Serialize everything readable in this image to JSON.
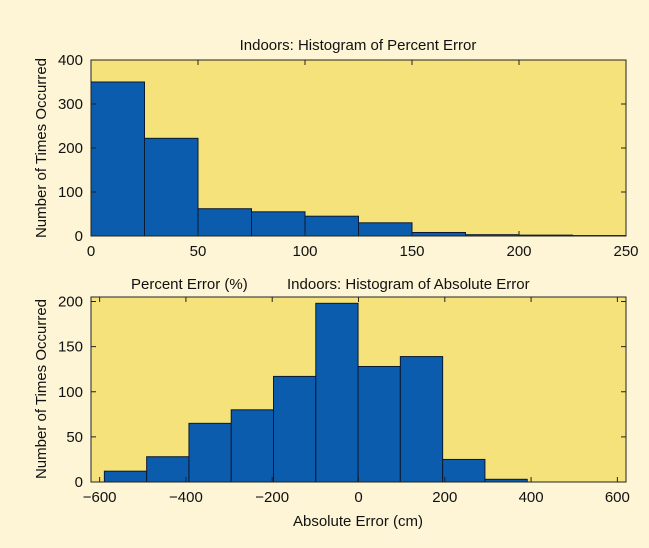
{
  "colors": {
    "background": "#fdf5d6",
    "plot_area": "#f5e27a",
    "bar_fill": "#0b5cad",
    "bar_edge": "#0a1a33"
  },
  "chart_data": [
    {
      "type": "bar",
      "title": "Indoors: Histogram of Percent Error",
      "xlabel": "Percent Error (%)",
      "ylabel": "Number of Times Occurred",
      "xlim": [
        0,
        250
      ],
      "ylim": [
        0,
        400
      ],
      "xticks": [
        "0",
        "50",
        "100",
        "150",
        "200",
        "250"
      ],
      "yticks": [
        "0",
        "100",
        "200",
        "300",
        "400"
      ],
      "bin_width": 25,
      "bin_starts": [
        0,
        25,
        50,
        75,
        100,
        125,
        150,
        175,
        200,
        225
      ],
      "values": [
        350,
        222,
        62,
        55,
        45,
        30,
        8,
        3,
        2,
        1
      ]
    },
    {
      "type": "bar",
      "title": "Indoors: Histogram of Absolute Error",
      "xlabel": "Absolute Error (cm)",
      "ylabel": "Number of Times Occurred",
      "xlim": [
        -620,
        620
      ],
      "ylim": [
        0,
        205
      ],
      "xticks": [
        "−600",
        "−400",
        "−200",
        "0",
        "200",
        "400",
        "600"
      ],
      "xtick_values": [
        -600,
        -400,
        -200,
        0,
        200,
        400,
        600
      ],
      "yticks": [
        "0",
        "50",
        "100",
        "150",
        "200"
      ],
      "bin_width": 98,
      "bin_starts": [
        -589,
        -491,
        -393,
        -295,
        -197,
        -99,
        -1,
        97,
        195,
        293,
        391
      ],
      "values": [
        12,
        28,
        65,
        80,
        117,
        198,
        128,
        139,
        25,
        3,
        0
      ]
    }
  ]
}
